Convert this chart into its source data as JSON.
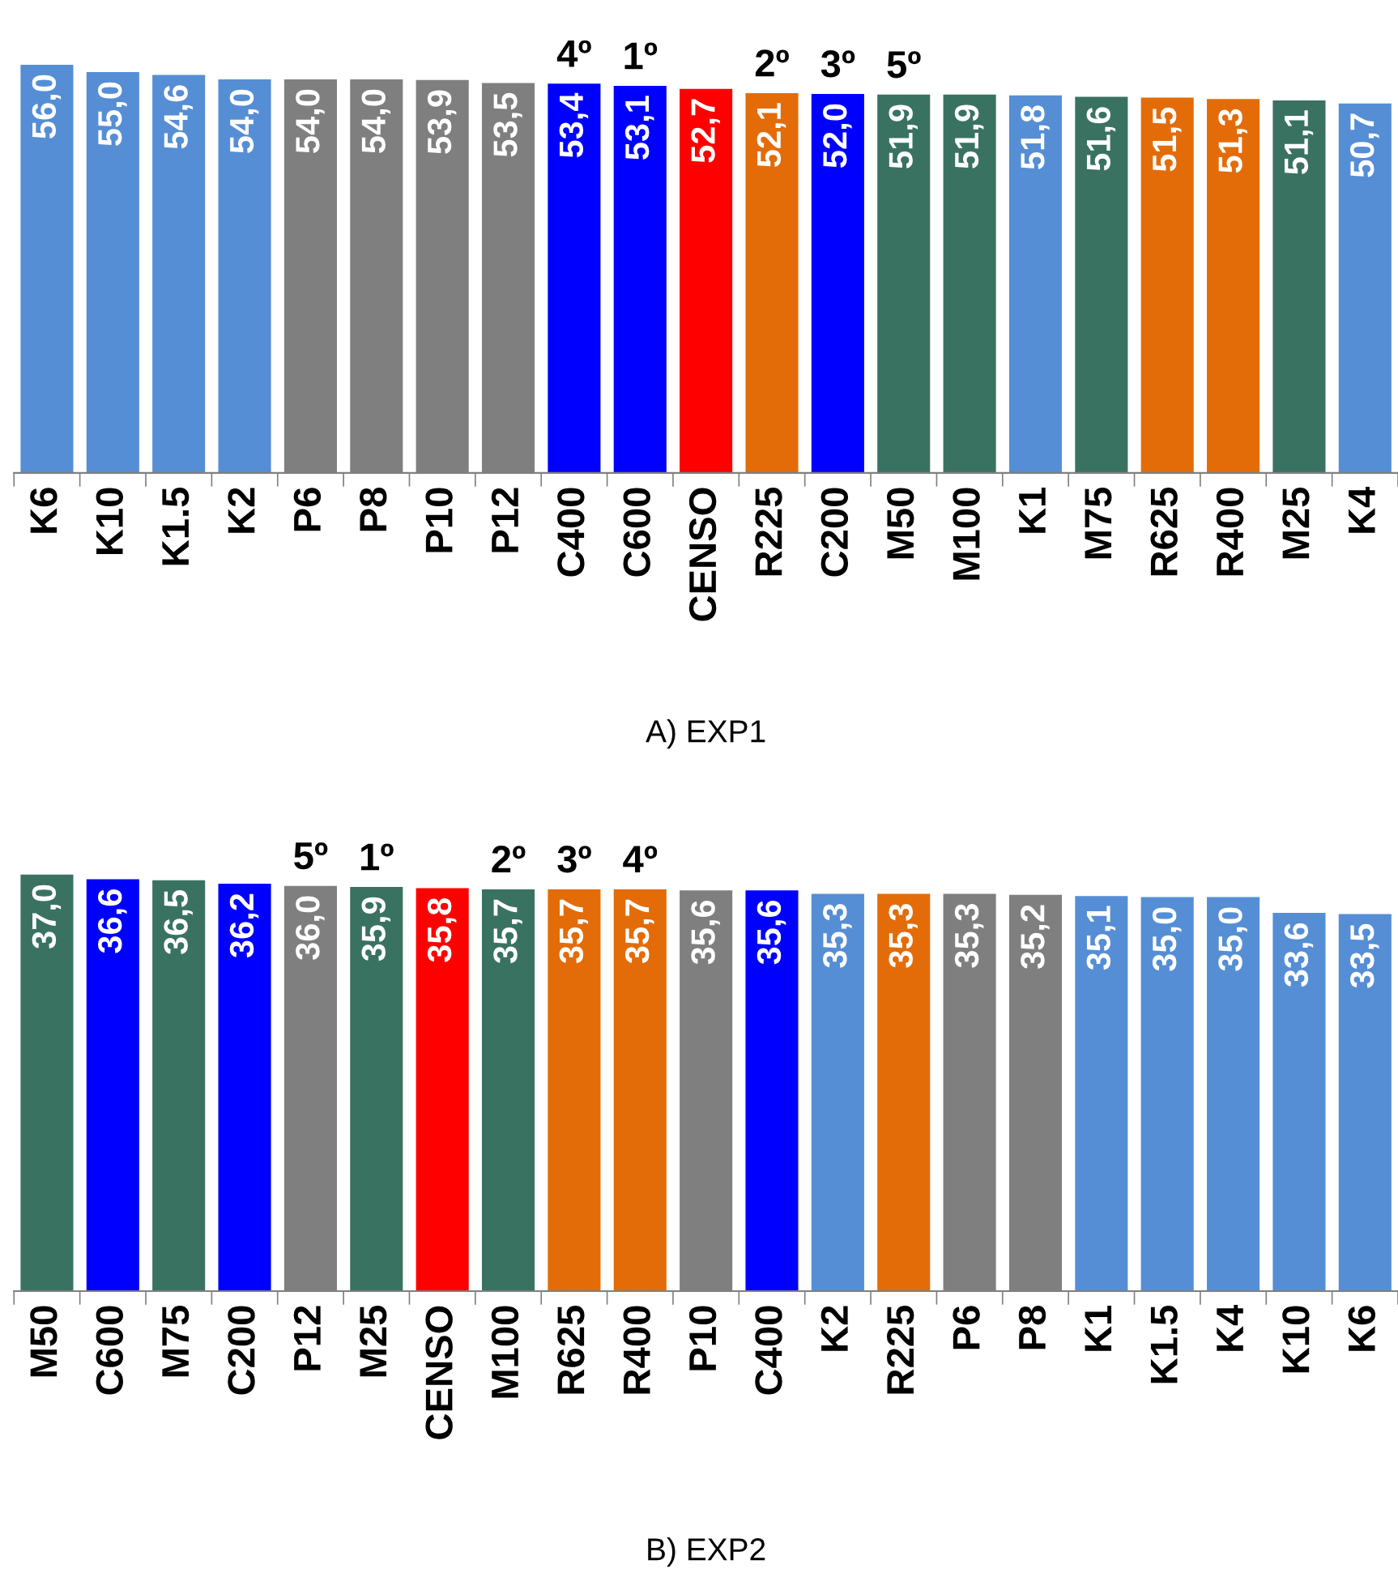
{
  "chart_data": [
    {
      "type": "bar",
      "title": "A) EXP1",
      "categories": [
        "K6",
        "K10",
        "K1.5",
        "K2",
        "P6",
        "P8",
        "P10",
        "P12",
        "C400",
        "C600",
        "CENSO",
        "R225",
        "C200",
        "M50",
        "M100",
        "K1",
        "M75",
        "R625",
        "R400",
        "M25",
        "K4"
      ],
      "values": [
        56.0,
        55.0,
        54.6,
        54.0,
        54.0,
        54.0,
        53.9,
        53.5,
        53.4,
        53.1,
        52.7,
        52.1,
        52.0,
        51.9,
        51.9,
        51.8,
        51.6,
        51.5,
        51.3,
        51.1,
        50.7
      ],
      "value_labels": [
        "56,0",
        "55,0",
        "54,6",
        "54,0",
        "54,0",
        "54,0",
        "53,9",
        "53,5",
        "53,4",
        "53,1",
        "52,7",
        "52,1",
        "52,0",
        "51,9",
        "51,9",
        "51,8",
        "51,6",
        "51,5",
        "51,3",
        "51,1",
        "50,7"
      ],
      "colors": [
        "#558ed5",
        "#558ed5",
        "#558ed5",
        "#558ed5",
        "#7f7f7f",
        "#7f7f7f",
        "#7f7f7f",
        "#7f7f7f",
        "#0000ff",
        "#0000ff",
        "#ff0000",
        "#e36c09",
        "#0000ff",
        "#3a7262",
        "#3a7262",
        "#558ed5",
        "#3a7262",
        "#e36c09",
        "#e36c09",
        "#3a7262",
        "#558ed5"
      ],
      "tick_labels": "x",
      "grid": false,
      "legend": false,
      "annotations": [
        {
          "text": "4º",
          "x": "C400",
          "y": 53.4
        },
        {
          "text": "1º",
          "x": "C600",
          "y": 53.1
        },
        {
          "text": "2º",
          "x": "R225",
          "y": 52.1
        },
        {
          "text": "3º",
          "x": "C200",
          "y": 52.0
        },
        {
          "text": "5º",
          "x": "M50",
          "y": 51.9
        }
      ]
    },
    {
      "type": "bar",
      "title": "B) EXP2",
      "categories": [
        "M50",
        "C600",
        "M75",
        "C200",
        "P12",
        "M25",
        "CENSO",
        "M100",
        "R625",
        "R400",
        "P10",
        "C400",
        "K2",
        "R225",
        "P6",
        "P8",
        "K1",
        "K1.5",
        "K4",
        "K10",
        "K6"
      ],
      "values": [
        37.0,
        36.6,
        36.5,
        36.2,
        36.0,
        35.9,
        35.8,
        35.7,
        35.7,
        35.7,
        35.6,
        35.6,
        35.3,
        35.3,
        35.3,
        35.2,
        35.1,
        35.0,
        35.0,
        33.6,
        33.5
      ],
      "value_labels": [
        "37,0",
        "36,6",
        "36,5",
        "36,2",
        "36,0",
        "35,9",
        "35,8",
        "35,7",
        "35,7",
        "35,7",
        "35,6",
        "35,6",
        "35,3",
        "35,3",
        "35,3",
        "35,2",
        "35,1",
        "35,0",
        "35,0",
        "33,6",
        "33,5"
      ],
      "colors": [
        "#3a7262",
        "#0000ff",
        "#3a7262",
        "#0000ff",
        "#7f7f7f",
        "#3a7262",
        "#ff0000",
        "#3a7262",
        "#e36c09",
        "#e36c09",
        "#7f7f7f",
        "#0000ff",
        "#558ed5",
        "#e36c09",
        "#7f7f7f",
        "#7f7f7f",
        "#558ed5",
        "#558ed5",
        "#558ed5",
        "#558ed5",
        "#558ed5"
      ],
      "tick_labels": "x",
      "grid": false,
      "legend": false,
      "annotations": [
        {
          "text": "5º",
          "x": "P12",
          "y": 36.0
        },
        {
          "text": "1º",
          "x": "M25",
          "y": 35.9
        },
        {
          "text": "2º",
          "x": "M100",
          "y": 35.7
        },
        {
          "text": "3º",
          "x": "R625",
          "y": 35.7
        },
        {
          "text": "4º",
          "x": "R400",
          "y": 35.7
        }
      ]
    }
  ]
}
